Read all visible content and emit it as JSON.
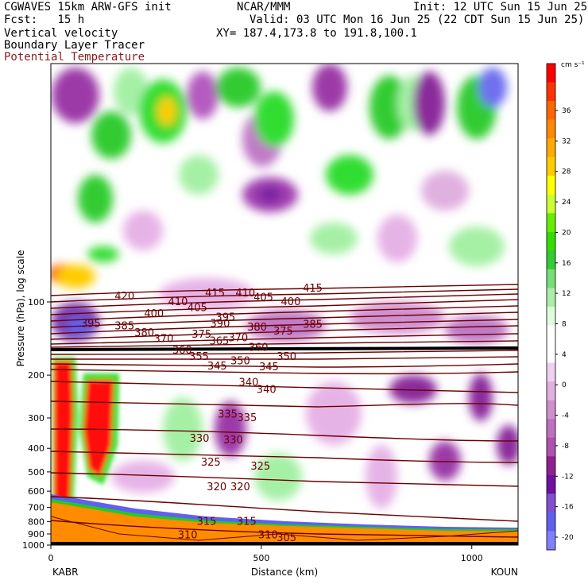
{
  "header": {
    "line1_left": "CGWAVES 15km ARW-GFS init",
    "line1_center": "NCAR/MMM",
    "line1_right": "Init: 12 UTC Sun 15 Jun 25",
    "line2_left": "Fcst:   15 h",
    "line2_right": "Valid: 03 UTC Mon 16 Jun 25 (22 CDT Sun 15 Jun 25)",
    "line3_left": "Vertical velocity",
    "line3_right": "XY= 187.4,173.8 to 191.8,100.1",
    "line4_left": "Boundary Layer Tracer",
    "line5_left": "Potential Temperature"
  },
  "colors": {
    "theta_contour": "#6b0000",
    "red": "#ff1010",
    "orange": "#ff8c00",
    "green": "#22dd22",
    "light_green": "#a6f0a6",
    "light_purple": "#e6b3e6",
    "purple": "#8b2b9b",
    "blue_purple": "#7070f0"
  },
  "colorbar": {
    "unit": "cm s⁻¹",
    "ticks": [
      "36",
      "32",
      "28",
      "24",
      "20",
      "16",
      "12",
      "8",
      "4",
      "0",
      "-4",
      "-8",
      "-12",
      "-16",
      "-20"
    ],
    "bands": [
      "#ff0000",
      "#ff3300",
      "#ff6600",
      "#ff8800",
      "#ffaa00",
      "#ffcc00",
      "#ffff00",
      "#ccff33",
      "#66ee00",
      "#33dd00",
      "#33cc33",
      "#77dd77",
      "#aaeeaa",
      "#ddffdd",
      "#ffffff",
      "#ffffff",
      "#f0d0f0",
      "#e0b0e0",
      "#d090d0",
      "#c070c0",
      "#b050b0",
      "#902090",
      "#7010a0",
      "#8050d0",
      "#6060f0",
      "#8080ff"
    ]
  },
  "chart_data": {
    "type": "cross-section contour",
    "ylabel": "Pressure (hPa), log scale",
    "xlabel": "Distance (km)",
    "y_scale": "log",
    "y_ticks": [
      "100",
      "200",
      "300",
      "400",
      "500",
      "600",
      "700",
      "800",
      "900",
      "1000"
    ],
    "x_ticks": [
      "0",
      "500",
      "1000"
    ],
    "x_range": [
      0,
      1110
    ],
    "left_station": "KABR",
    "right_station": "KOUN",
    "theta_labels": [
      {
        "text": "420",
        "x": 175,
        "p": 95
      },
      {
        "text": "415",
        "x": 390,
        "p": 92
      },
      {
        "text": "410",
        "x": 462,
        "p": 92
      },
      {
        "text": "405",
        "x": 505,
        "p": 96
      },
      {
        "text": "415",
        "x": 622,
        "p": 88
      },
      {
        "text": "400",
        "x": 570,
        "p": 100
      },
      {
        "text": "410",
        "x": 302,
        "p": 100
      },
      {
        "text": "405",
        "x": 348,
        "p": 106
      },
      {
        "text": "400",
        "x": 245,
        "p": 112
      },
      {
        "text": "395",
        "x": 415,
        "p": 116
      },
      {
        "text": "395",
        "x": 95,
        "p": 123
      },
      {
        "text": "385",
        "x": 175,
        "p": 126
      },
      {
        "text": "390",
        "x": 402,
        "p": 123
      },
      {
        "text": "380",
        "x": 490,
        "p": 127
      },
      {
        "text": "375",
        "x": 552,
        "p": 132
      },
      {
        "text": "385",
        "x": 622,
        "p": 124
      },
      {
        "text": "380",
        "x": 222,
        "p": 134
      },
      {
        "text": "375",
        "x": 358,
        "p": 136
      },
      {
        "text": "370",
        "x": 445,
        "p": 141
      },
      {
        "text": "370",
        "x": 268,
        "p": 142
      },
      {
        "text": "365",
        "x": 400,
        "p": 145
      },
      {
        "text": "360",
        "x": 312,
        "p": 158
      },
      {
        "text": "360",
        "x": 493,
        "p": 154
      },
      {
        "text": "355",
        "x": 352,
        "p": 168
      },
      {
        "text": "350",
        "x": 450,
        "p": 175
      },
      {
        "text": "350",
        "x": 560,
        "p": 168
      },
      {
        "text": "345",
        "x": 395,
        "p": 184
      },
      {
        "text": "345",
        "x": 518,
        "p": 185
      },
      {
        "text": "340",
        "x": 470,
        "p": 215
      },
      {
        "text": "340",
        "x": 512,
        "p": 230
      },
      {
        "text": "335",
        "x": 420,
        "p": 290
      },
      {
        "text": "335",
        "x": 466,
        "p": 300
      },
      {
        "text": "330",
        "x": 353,
        "p": 365
      },
      {
        "text": "330",
        "x": 433,
        "p": 370
      },
      {
        "text": "325",
        "x": 380,
        "p": 458
      },
      {
        "text": "325",
        "x": 498,
        "p": 475
      },
      {
        "text": "320",
        "x": 394,
        "p": 578
      },
      {
        "text": "320",
        "x": 450,
        "p": 578
      },
      {
        "text": "315",
        "x": 370,
        "p": 800
      },
      {
        "text": "315",
        "x": 465,
        "p": 800
      },
      {
        "text": "310",
        "x": 325,
        "p": 910
      },
      {
        "text": "310",
        "x": 516,
        "p": 910
      },
      {
        "text": "305",
        "x": 560,
        "p": 935
      }
    ]
  }
}
